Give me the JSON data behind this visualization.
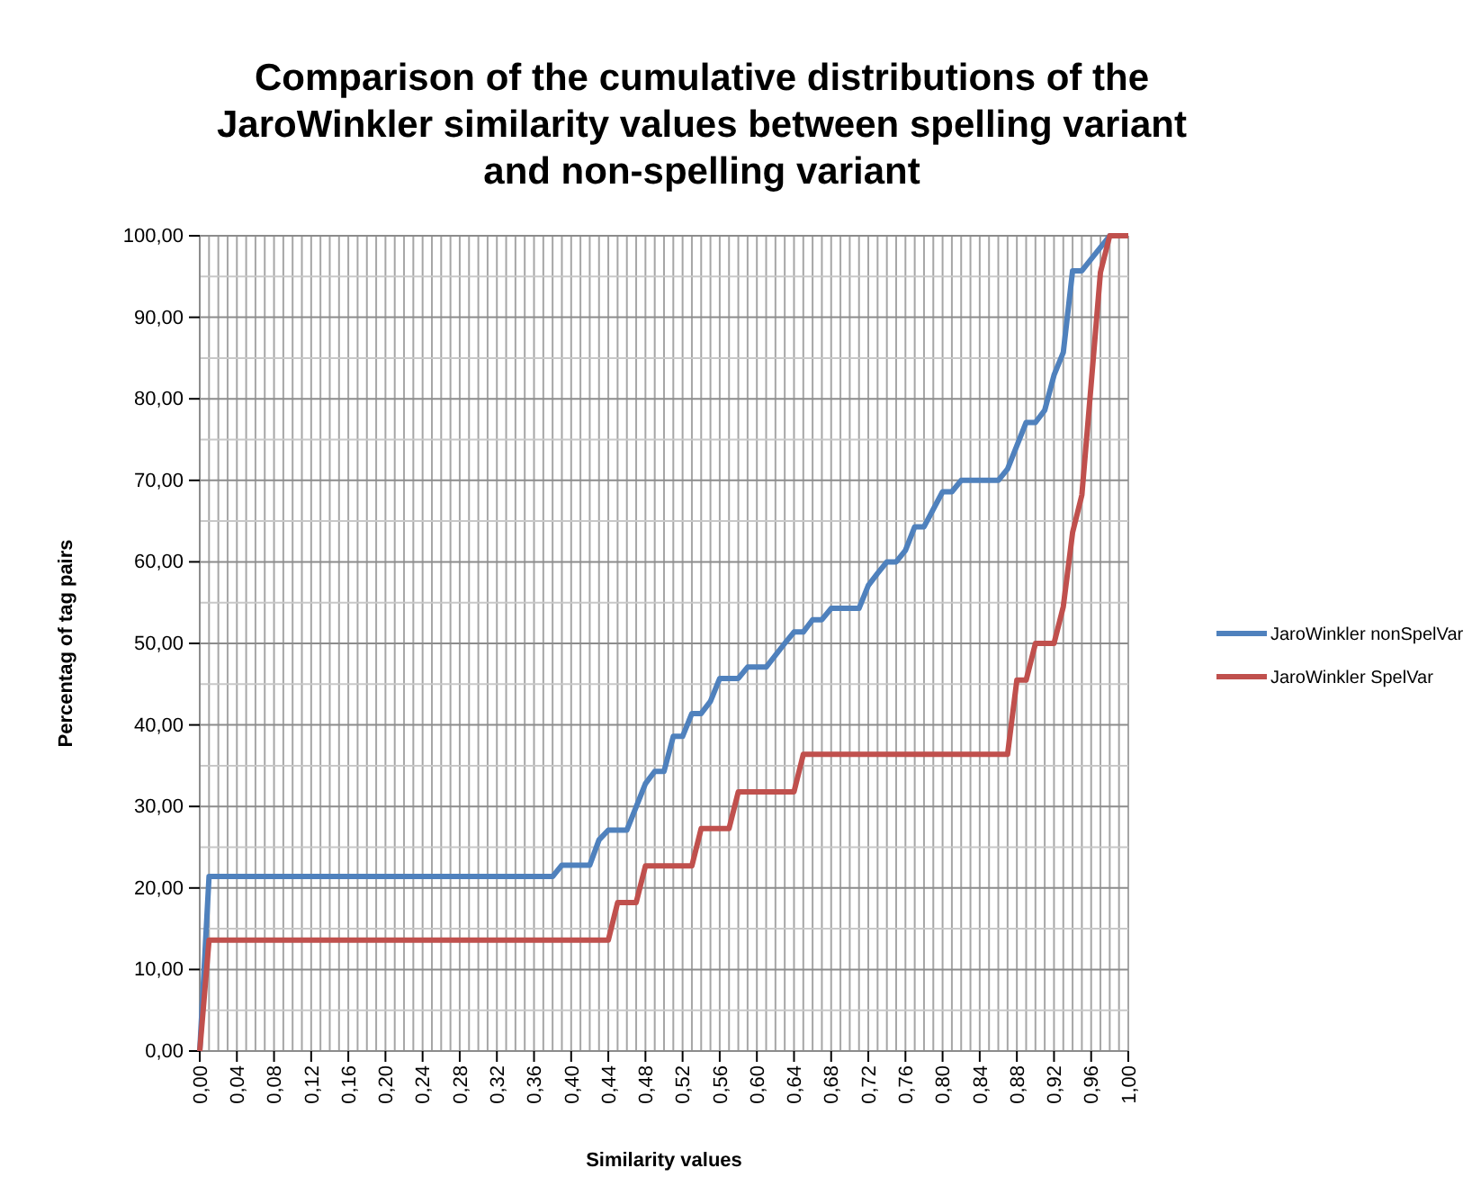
{
  "chart_data": {
    "type": "line",
    "title": "Comparison of the cumulative distributions of the JaroWinkler similarity values between spelling variant and non-spelling variant",
    "xlabel": "Similarity values",
    "ylabel": "Percentag of tag pairs",
    "xlim": [
      0,
      1
    ],
    "xticks": [
      {
        "value": 0,
        "label": "0,00"
      },
      {
        "value": 0.04,
        "label": "0,04"
      },
      {
        "value": 0.08,
        "label": "0,08"
      },
      {
        "value": 0.12,
        "label": "0,12"
      },
      {
        "value": 0.16,
        "label": "0,16"
      },
      {
        "value": 0.2,
        "label": "0,20"
      },
      {
        "value": 0.24,
        "label": "0,24"
      },
      {
        "value": 0.28,
        "label": "0,28"
      },
      {
        "value": 0.32,
        "label": "0,32"
      },
      {
        "value": 0.36,
        "label": "0,36"
      },
      {
        "value": 0.4,
        "label": "0,40"
      },
      {
        "value": 0.44,
        "label": "0,44"
      },
      {
        "value": 0.48,
        "label": "0,48"
      },
      {
        "value": 0.52,
        "label": "0,52"
      },
      {
        "value": 0.56,
        "label": "0,56"
      },
      {
        "value": 0.6,
        "label": "0,60"
      },
      {
        "value": 0.64,
        "label": "0,64"
      },
      {
        "value": 0.68,
        "label": "0,68"
      },
      {
        "value": 0.72,
        "label": "0,72"
      },
      {
        "value": 0.76,
        "label": "0,76"
      },
      {
        "value": 0.8,
        "label": "0,80"
      },
      {
        "value": 0.84,
        "label": "0,84"
      },
      {
        "value": 0.88,
        "label": "0,88"
      },
      {
        "value": 0.92,
        "label": "0,92"
      },
      {
        "value": 0.96,
        "label": "0,96"
      },
      {
        "value": 1,
        "label": "1,00"
      }
    ],
    "ylim": [
      0,
      100
    ],
    "yticks": [
      {
        "value": 0,
        "label": "0,00"
      },
      {
        "value": 10,
        "label": "10,00"
      },
      {
        "value": 20,
        "label": "20,00"
      },
      {
        "value": 30,
        "label": "30,00"
      },
      {
        "value": 40,
        "label": "40,00"
      },
      {
        "value": 50,
        "label": "50,00"
      },
      {
        "value": 60,
        "label": "60,00"
      },
      {
        "value": 70,
        "label": "70,00"
      },
      {
        "value": 80,
        "label": "80,00"
      },
      {
        "value": 90,
        "label": "90,00"
      },
      {
        "value": 100,
        "label": "100,00"
      }
    ],
    "grid": true,
    "legend": "right",
    "marker": "none",
    "line_style": "solid",
    "series": [
      {
        "name": "JaroWinkler nonSpelVar",
        "color": "#4f81bd",
        "x": [
          0,
          0.01,
          0.38,
          0.39,
          0.42,
          0.43,
          0.44,
          0.46,
          0.48,
          0.49,
          0.5,
          0.51,
          0.52,
          0.53,
          0.54,
          0.55,
          0.56,
          0.58,
          0.59,
          0.61,
          0.63,
          0.64,
          0.65,
          0.66,
          0.67,
          0.68,
          0.71,
          0.72,
          0.73,
          0.74,
          0.75,
          0.76,
          0.77,
          0.78,
          0.8,
          0.81,
          0.82,
          0.86,
          0.87,
          0.89,
          0.9,
          0.91,
          0.92,
          0.93,
          0.94,
          0.95,
          0.98,
          1
        ],
        "values": [
          0,
          21.4,
          21.4,
          22.8,
          22.8,
          25.9,
          27.1,
          27.1,
          32.8,
          34.3,
          34.3,
          38.6,
          38.6,
          41.4,
          41.4,
          42.9,
          45.7,
          45.7,
          47.1,
          47.1,
          50,
          51.4,
          51.4,
          52.9,
          52.9,
          54.3,
          54.3,
          57.1,
          58.6,
          60,
          60,
          61.4,
          64.3,
          64.3,
          68.6,
          68.6,
          70,
          70,
          71.4,
          77.1,
          77.1,
          78.6,
          82.9,
          85.7,
          95.7,
          95.7,
          100,
          100
        ]
      },
      {
        "name": "JaroWinkler SpelVar",
        "color": "#c0504d",
        "x": [
          0,
          0.01,
          0.44,
          0.45,
          0.47,
          0.48,
          0.53,
          0.54,
          0.57,
          0.58,
          0.64,
          0.65,
          0.87,
          0.88,
          0.89,
          0.9,
          0.92,
          0.93,
          0.94,
          0.95,
          0.96,
          0.97,
          0.98,
          1
        ],
        "values": [
          0,
          13.6,
          13.6,
          18.2,
          18.2,
          22.7,
          22.7,
          27.3,
          27.3,
          31.8,
          31.8,
          36.4,
          36.4,
          45.5,
          45.5,
          50,
          50,
          54.5,
          63.6,
          68.2,
          81.8,
          95.5,
          100,
          100
        ]
      }
    ]
  }
}
